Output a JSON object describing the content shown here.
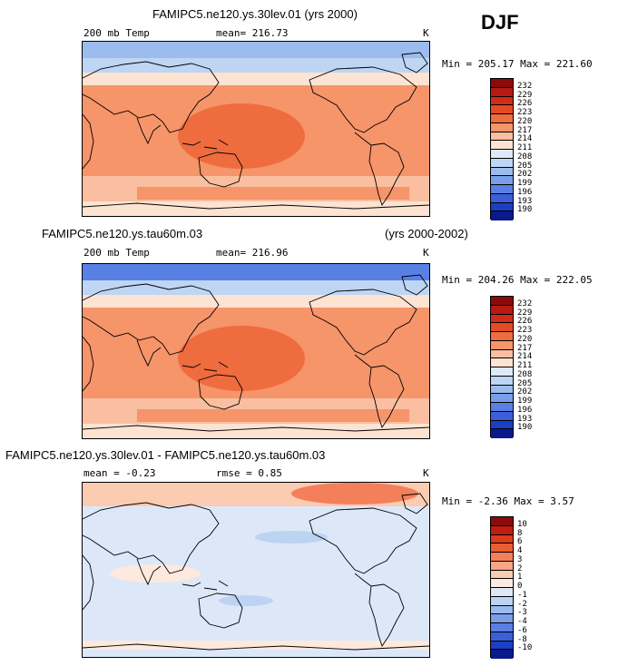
{
  "figure": {
    "season": "DJF"
  },
  "chart_data": [
    {
      "type": "heatmap",
      "title": "FAMIPC5.ne120.ys.30lev.01 (yrs 2000)",
      "subtitle": "",
      "variable_label": "200 mb Temp",
      "mean_text": "mean= 216.73",
      "units": "K",
      "minmax_text": "Min = 205.17 Max = 221.60",
      "min": 205.17,
      "max": 221.6,
      "mean": 216.73,
      "levels": [
        "232",
        "229",
        "226",
        "223",
        "220",
        "217",
        "214",
        "211",
        "208",
        "205",
        "202",
        "199",
        "196",
        "193",
        "190"
      ],
      "colors": [
        "#8b0a0a",
        "#b61a13",
        "#d32b18",
        "#e44a25",
        "#ef6c3e",
        "#f6946a",
        "#f9bfa0",
        "#fce3d2",
        "#dde9f8",
        "#bed5f3",
        "#9cbcee",
        "#7a9fea",
        "#5980e4",
        "#3c5fd9",
        "#1b3ec7",
        "#0a1a8a"
      ]
    },
    {
      "type": "heatmap",
      "title": "FAMIPC5.ne120.ys.tau60m.03",
      "subtitle": "(yrs 2000-2002)",
      "variable_label": "200 mb Temp",
      "mean_text": "mean= 216.96",
      "units": "K",
      "minmax_text": "Min = 204.26 Max = 222.05",
      "min": 204.26,
      "max": 222.05,
      "mean": 216.96,
      "levels": [
        "232",
        "229",
        "226",
        "223",
        "220",
        "217",
        "214",
        "211",
        "208",
        "205",
        "202",
        "199",
        "196",
        "193",
        "190"
      ],
      "colors": [
        "#8b0a0a",
        "#b61a13",
        "#d32b18",
        "#e44a25",
        "#ef6c3e",
        "#f6946a",
        "#f9bfa0",
        "#fce3d2",
        "#dde9f8",
        "#bed5f3",
        "#9cbcee",
        "#7a9fea",
        "#5980e4",
        "#3c5fd9",
        "#1b3ec7",
        "#0a1a8a"
      ]
    },
    {
      "type": "heatmap",
      "title": "FAMIPC5.ne120.ys.30lev.01 - FAMIPC5.ne120.ys.tau60m.03",
      "subtitle": "",
      "mean_text": "mean =   -0.23",
      "rmse_text": "rmse =   0.85",
      "units": "K",
      "minmax_text": "Min =  -2.36  Max =    3.57",
      "min": -2.36,
      "max": 3.57,
      "mean": -0.23,
      "rmse": 0.85,
      "levels": [
        "10",
        "8",
        "6",
        "4",
        "3",
        "2",
        "1",
        "0",
        "-1",
        "-2",
        "-3",
        "-4",
        "-6",
        "-8",
        "-10"
      ],
      "colors": [
        "#8b0a0a",
        "#c01c14",
        "#dd3b1e",
        "#ec5d32",
        "#f3805a",
        "#f8a585",
        "#fbcbb2",
        "#fde9dd",
        "#dce8f8",
        "#bcd3f2",
        "#9bbaee",
        "#7b9dea",
        "#5a7fe4",
        "#3b5ed9",
        "#1b3ec7",
        "#0a1a8a"
      ]
    }
  ]
}
